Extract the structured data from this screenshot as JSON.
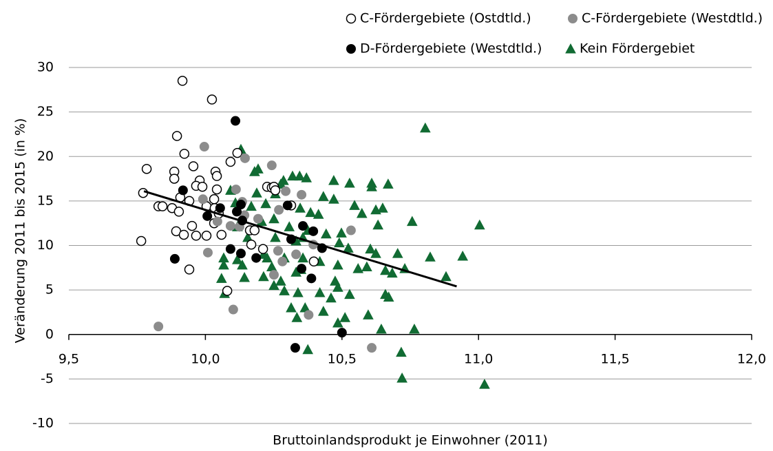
{
  "chart_data": {
    "type": "scatter",
    "xlabel": "Bruttoinlandsprodukt je Einwohner (2011)",
    "ylabel": "Veränderung 2011 bis 2015 (in %)",
    "xlim": [
      9.5,
      12.0
    ],
    "xticks": [
      {
        "value": 9.5,
        "label": "9,5"
      },
      {
        "value": 10.0,
        "label": "10,0"
      },
      {
        "value": 10.5,
        "label": "10,5"
      },
      {
        "value": 11.0,
        "label": "11,0"
      },
      {
        "value": 11.5,
        "label": "11,5"
      },
      {
        "value": 12.0,
        "label": "12,0"
      }
    ],
    "ylim": [
      -10,
      30
    ],
    "yticks": [
      30,
      25,
      20,
      15,
      10,
      5,
      0,
      -5,
      -10
    ],
    "grid": true,
    "series": [
      {
        "name": "Kein Fördergebiet",
        "marker": "triangle",
        "color": "#116b33",
        "x": [
          10.13,
          10.18,
          10.193,
          10.286,
          10.276,
          10.319,
          10.345,
          10.37,
          10.47,
          10.528,
          10.609,
          10.609,
          10.669,
          10.805,
          10.092,
          10.188,
          10.256,
          10.432,
          10.47,
          10.546,
          10.649,
          10.624,
          10.11,
          10.168,
          10.221,
          10.347,
          10.385,
          10.414,
          10.573,
          10.757,
          10.632,
          11.004,
          10.117,
          10.206,
          10.251,
          10.307,
          10.375,
          10.498,
          10.442,
          10.256,
          10.332,
          10.49,
          10.523,
          10.604,
          10.624,
          10.704,
          10.823,
          10.942,
          10.067,
          10.117,
          10.213,
          10.289,
          10.357,
          10.419,
          10.485,
          10.559,
          10.591,
          10.73,
          10.067,
          10.135,
          10.243,
          10.35,
          10.659,
          10.684,
          10.881,
          10.059,
          10.143,
          10.213,
          10.276,
          10.475,
          10.251,
          10.485,
          10.289,
          10.339,
          10.419,
          10.528,
          10.07,
          10.659,
          10.671,
          10.46,
          10.314,
          10.365,
          10.432,
          10.596,
          10.335,
          10.511,
          10.485,
          10.644,
          10.765,
          10.375,
          10.717,
          10.72,
          11.022,
          10.226,
          10.332,
          10.155,
          10.357
        ],
        "y": [
          20.8,
          18.3,
          18.6,
          17.3,
          16.9,
          17.8,
          17.8,
          17.6,
          17.3,
          17.0,
          17.0,
          16.6,
          16.9,
          23.2,
          16.2,
          15.9,
          15.8,
          15.5,
          15.2,
          14.5,
          14.2,
          14.0,
          14.8,
          14.4,
          14.7,
          14.2,
          13.7,
          13.5,
          13.6,
          12.7,
          12.3,
          12.3,
          12.1,
          12.7,
          13.0,
          12.1,
          11.7,
          11.4,
          11.3,
          10.9,
          10.5,
          10.3,
          9.7,
          9.6,
          9.1,
          9.1,
          8.7,
          8.8,
          8.6,
          8.4,
          9.0,
          8.6,
          8.6,
          8.2,
          7.8,
          7.4,
          7.6,
          7.4,
          7.8,
          7.8,
          7.6,
          7.3,
          7.2,
          6.9,
          6.5,
          6.3,
          6.4,
          6.5,
          6.0,
          6.0,
          5.5,
          5.3,
          4.9,
          4.7,
          4.7,
          4.5,
          4.6,
          4.5,
          4.2,
          4.1,
          3.0,
          3.0,
          2.6,
          2.2,
          1.9,
          1.9,
          1.3,
          0.6,
          0.6,
          -1.7,
          -2.0,
          -4.9,
          -5.6,
          8.6,
          7.0,
          10.9,
          10.9
        ]
      },
      {
        "name": "C-Fördergebiete (Ostdtld.)",
        "marker": "circle",
        "color": "#ffffff",
        "edgecolor": "#000000",
        "x": [
          9.916,
          10.024,
          9.896,
          9.785,
          9.923,
          9.886,
          9.886,
          9.772,
          9.956,
          10.037,
          10.042,
          9.979,
          9.966,
          9.989,
          10.042,
          9.908,
          9.941,
          9.828,
          9.843,
          9.878,
          9.903,
          10.004,
          10.032,
          10.034,
          10.049,
          9.951,
          10.032,
          9.893,
          9.921,
          9.966,
          10.004,
          10.059,
          9.765,
          9.941,
          10.092,
          10.117,
          10.226,
          10.243,
          10.251,
          10.256,
          10.163,
          10.18,
          10.168,
          10.211,
          10.08,
          10.314,
          10.397
        ],
        "y": [
          28.5,
          26.4,
          22.3,
          18.6,
          20.3,
          18.3,
          17.5,
          15.9,
          18.9,
          18.3,
          17.8,
          17.3,
          16.7,
          16.6,
          16.3,
          15.4,
          15.0,
          14.4,
          14.4,
          14.2,
          13.8,
          14.4,
          15.2,
          14.2,
          13.6,
          12.2,
          12.5,
          11.6,
          11.2,
          11.1,
          11.1,
          11.2,
          10.5,
          7.3,
          19.4,
          20.4,
          16.6,
          16.5,
          16.6,
          16.2,
          11.7,
          11.7,
          10.1,
          9.6,
          4.9,
          14.5,
          8.2
        ]
      },
      {
        "name": "C-Fördergebiete (Westdtld.)",
        "marker": "circle",
        "color": "#8c8c8c",
        "x": [
          9.996,
          10.145,
          10.243,
          10.112,
          10.135,
          9.991,
          10.044,
          10.092,
          10.125,
          10.143,
          10.193,
          10.269,
          10.294,
          10.352,
          10.009,
          10.102,
          9.828,
          10.266,
          10.282,
          10.251,
          10.332,
          10.378,
          10.533,
          10.609,
          10.395
        ],
        "y": [
          21.1,
          19.8,
          19.0,
          16.3,
          14.9,
          15.2,
          12.7,
          12.2,
          12.1,
          13.4,
          13.0,
          14.0,
          16.1,
          15.7,
          9.2,
          2.8,
          0.9,
          9.4,
          8.2,
          6.7,
          9.0,
          2.2,
          11.7,
          -1.5,
          10.1
        ]
      },
      {
        "name": "D-Fördergebiete (Westdtld.)",
        "marker": "circle",
        "color": "#000000",
        "x": [
          10.11,
          9.918,
          10.007,
          10.054,
          10.115,
          10.13,
          10.092,
          10.13,
          10.186,
          9.888,
          10.301,
          10.314,
          10.357,
          10.395,
          10.427,
          10.352,
          10.388,
          10.5,
          10.329,
          10.135
        ],
        "y": [
          24.0,
          16.2,
          13.3,
          14.2,
          13.8,
          14.6,
          9.6,
          9.1,
          8.6,
          8.5,
          14.5,
          10.7,
          12.2,
          11.6,
          9.7,
          7.4,
          6.3,
          0.2,
          -1.5,
          12.8
        ]
      }
    ],
    "trendline": {
      "color": "#000000",
      "x": [
        9.775,
        10.92
      ],
      "y": [
        16.1,
        5.4
      ]
    }
  }
}
